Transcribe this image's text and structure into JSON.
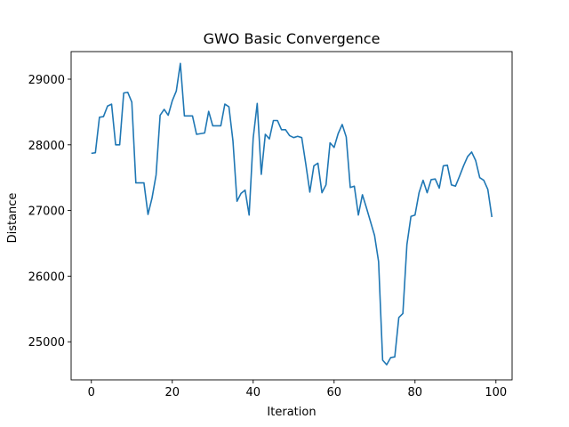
{
  "chart_data": {
    "type": "line",
    "title": "GWO Basic Convergence",
    "xlabel": "Iteration",
    "ylabel": "Distance",
    "xlim": [
      -5,
      104
    ],
    "ylim": [
      24420,
      29420
    ],
    "xticks": [
      0,
      20,
      40,
      60,
      80,
      100
    ],
    "yticks": [
      25000,
      26000,
      27000,
      28000,
      29000
    ],
    "grid": false,
    "line_color": "#1f77b4",
    "series": [
      {
        "x": [
          0,
          1,
          2,
          3,
          4,
          5,
          6,
          7,
          8,
          9,
          10,
          11,
          12,
          13,
          14,
          15,
          16,
          17,
          18,
          19,
          20,
          21,
          22,
          23,
          24,
          25,
          26,
          27,
          28,
          29,
          30,
          31,
          32,
          33,
          34,
          35,
          36,
          37,
          38,
          39,
          40,
          41,
          42,
          43,
          44,
          45,
          46,
          47,
          48,
          49,
          50,
          51,
          52,
          53,
          54,
          55,
          56,
          57,
          58,
          59,
          60,
          61,
          62,
          63,
          64,
          65,
          66,
          67,
          68,
          69,
          70,
          71,
          72,
          73,
          74,
          75,
          76,
          77,
          78,
          79,
          80,
          81,
          82,
          83,
          84,
          85,
          86,
          87,
          88,
          89,
          90,
          91,
          92,
          93,
          94,
          95,
          96,
          97,
          98,
          99
        ],
        "values": [
          27870,
          27880,
          28420,
          28430,
          28590,
          28620,
          28000,
          28000,
          28790,
          28800,
          28650,
          27420,
          27420,
          27420,
          26940,
          27190,
          27540,
          28450,
          28540,
          28450,
          28670,
          28820,
          29240,
          28440,
          28440,
          28440,
          28160,
          28170,
          28180,
          28510,
          28290,
          28290,
          28290,
          28620,
          28580,
          28060,
          27140,
          27260,
          27310,
          26930,
          28100,
          28630,
          27550,
          28160,
          28090,
          28370,
          28370,
          28230,
          28230,
          28140,
          28110,
          28130,
          28110,
          27710,
          27280,
          27680,
          27720,
          27270,
          27390,
          28030,
          27960,
          28170,
          28310,
          28120,
          27350,
          27370,
          26930,
          27240,
          27040,
          26830,
          26620,
          26220,
          24720,
          24650,
          24760,
          24770,
          25370,
          25430,
          26480,
          26910,
          26930,
          27270,
          27460,
          27270,
          27470,
          27480,
          27340,
          27680,
          27690,
          27390,
          27370,
          27520,
          27680,
          27820,
          27890,
          27760,
          27500,
          27460,
          27320,
          26900
        ]
      }
    ]
  }
}
